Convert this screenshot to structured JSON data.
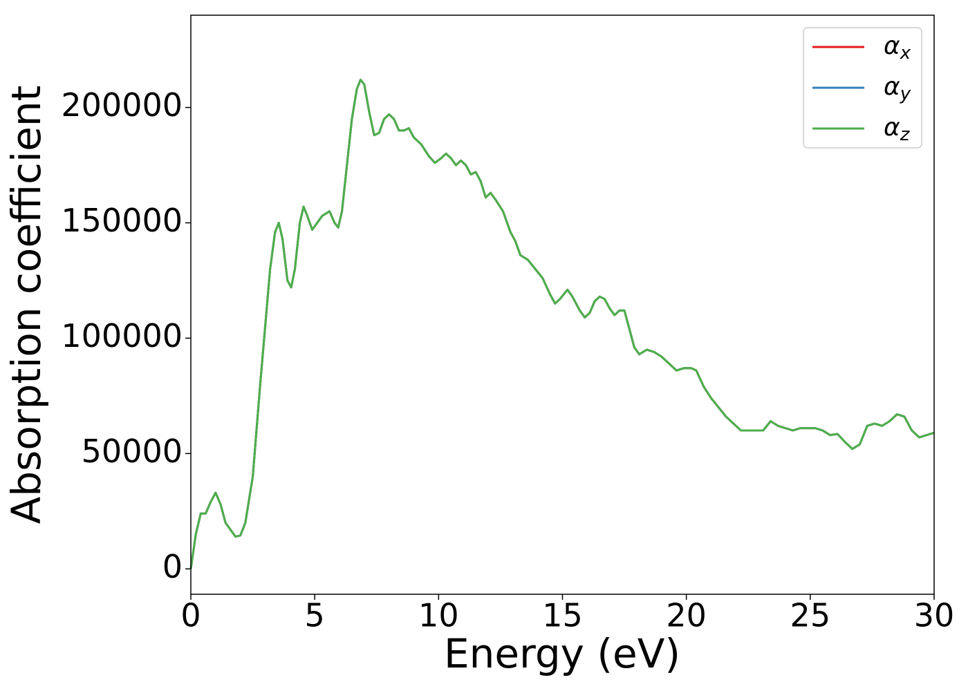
{
  "chart_data": {
    "type": "line",
    "x_label": "Energy (eV)",
    "y_label": "Absorption coefficient",
    "x": [
      0,
      0.2,
      0.4,
      0.6,
      0.8,
      1.0,
      1.2,
      1.4,
      1.6,
      1.8,
      2.0,
      2.2,
      2.5,
      2.8,
      3.0,
      3.2,
      3.4,
      3.55,
      3.7,
      3.9,
      4.05,
      4.2,
      4.4,
      4.55,
      4.7,
      4.9,
      5.1,
      5.3,
      5.6,
      5.8,
      5.95,
      6.1,
      6.3,
      6.5,
      6.7,
      6.85,
      7.0,
      7.2,
      7.4,
      7.6,
      7.8,
      8.0,
      8.2,
      8.4,
      8.6,
      8.8,
      9.0,
      9.3,
      9.6,
      9.85,
      10.1,
      10.3,
      10.5,
      10.7,
      10.9,
      11.1,
      11.3,
      11.5,
      11.7,
      11.9,
      12.1,
      12.3,
      12.6,
      12.9,
      13.1,
      13.3,
      13.6,
      13.9,
      14.2,
      14.5,
      14.7,
      14.9,
      15.2,
      15.4,
      15.7,
      15.9,
      16.1,
      16.3,
      16.5,
      16.7,
      16.9,
      17.1,
      17.3,
      17.5,
      17.7,
      17.9,
      18.1,
      18.4,
      18.7,
      19.0,
      19.3,
      19.6,
      19.9,
      20.2,
      20.4,
      20.7,
      21.0,
      21.3,
      21.6,
      21.9,
      22.2,
      22.5,
      22.8,
      23.1,
      23.4,
      23.7,
      24.0,
      24.3,
      24.6,
      24.9,
      25.2,
      25.5,
      25.8,
      26.1,
      26.4,
      26.7,
      27.0,
      27.3,
      27.6,
      27.9,
      28.2,
      28.5,
      28.8,
      29.1,
      29.4,
      29.7,
      30.0
    ],
    "series": [
      {
        "name": "α_x",
        "color": "#e41a1c",
        "values": [
          0,
          15000,
          24000,
          24000,
          29000,
          33000,
          28000,
          20000,
          17000,
          14000,
          14500,
          20000,
          40000,
          80000,
          105000,
          130000,
          146000,
          150000,
          143000,
          125000,
          122000,
          130000,
          150000,
          157000,
          153000,
          147000,
          150000,
          153000,
          155000,
          150000,
          148000,
          155000,
          175000,
          195000,
          208000,
          212000,
          210000,
          198000,
          188000,
          189000,
          195000,
          197000,
          195000,
          190000,
          190000,
          191000,
          187000,
          184000,
          179000,
          176000,
          178000,
          180000,
          178000,
          175000,
          177000,
          175000,
          171000,
          172000,
          168000,
          161000,
          163000,
          160000,
          155000,
          146000,
          142000,
          136000,
          134000,
          130000,
          126000,
          119000,
          115000,
          117000,
          121000,
          118000,
          112000,
          109000,
          111000,
          116000,
          118000,
          117000,
          113000,
          110000,
          112000,
          112000,
          104000,
          96000,
          93000,
          95000,
          94000,
          92000,
          89000,
          86000,
          87000,
          87000,
          86000,
          79000,
          74000,
          70000,
          66000,
          63000,
          60000,
          60000,
          60000,
          60000,
          64000,
          62000,
          61000,
          60000,
          61000,
          61000,
          61000,
          60000,
          58000,
          58500,
          55000,
          52000,
          54000,
          62000,
          63000,
          62000,
          64000,
          67000,
          66000,
          60000,
          57000,
          58000,
          59000
        ]
      },
      {
        "name": "α_y",
        "color": "#377eb8",
        "values": [
          0,
          15000,
          24000,
          24000,
          29000,
          33000,
          28000,
          20000,
          17000,
          14000,
          14500,
          20000,
          40000,
          80000,
          105000,
          130000,
          146000,
          150000,
          143000,
          125000,
          122000,
          130000,
          150000,
          157000,
          153000,
          147000,
          150000,
          153000,
          155000,
          150000,
          148000,
          155000,
          175000,
          195000,
          208000,
          212000,
          210000,
          198000,
          188000,
          189000,
          195000,
          197000,
          195000,
          190000,
          190000,
          191000,
          187000,
          184000,
          179000,
          176000,
          178000,
          180000,
          178000,
          175000,
          177000,
          175000,
          171000,
          172000,
          168000,
          161000,
          163000,
          160000,
          155000,
          146000,
          142000,
          136000,
          134000,
          130000,
          126000,
          119000,
          115000,
          117000,
          121000,
          118000,
          112000,
          109000,
          111000,
          116000,
          118000,
          117000,
          113000,
          110000,
          112000,
          112000,
          104000,
          96000,
          93000,
          95000,
          94000,
          92000,
          89000,
          86000,
          87000,
          87000,
          86000,
          79000,
          74000,
          70000,
          66000,
          63000,
          60000,
          60000,
          60000,
          60000,
          64000,
          62000,
          61000,
          60000,
          61000,
          61000,
          61000,
          60000,
          58000,
          58500,
          55000,
          52000,
          54000,
          62000,
          63000,
          62000,
          64000,
          67000,
          66000,
          60000,
          57000,
          58000,
          59000
        ]
      },
      {
        "name": "α_z",
        "color": "#4daf4a",
        "values": [
          0,
          15000,
          24000,
          24000,
          29000,
          33000,
          28000,
          20000,
          17000,
          14000,
          14500,
          20000,
          40000,
          80000,
          105000,
          130000,
          146000,
          150000,
          143000,
          125000,
          122000,
          130000,
          150000,
          157000,
          153000,
          147000,
          150000,
          153000,
          155000,
          150000,
          148000,
          155000,
          175000,
          195000,
          208000,
          212000,
          210000,
          198000,
          188000,
          189000,
          195000,
          197000,
          195000,
          190000,
          190000,
          191000,
          187000,
          184000,
          179000,
          176000,
          178000,
          180000,
          178000,
          175000,
          177000,
          175000,
          171000,
          172000,
          168000,
          161000,
          163000,
          160000,
          155000,
          146000,
          142000,
          136000,
          134000,
          130000,
          126000,
          119000,
          115000,
          117000,
          121000,
          118000,
          112000,
          109000,
          111000,
          116000,
          118000,
          117000,
          113000,
          110000,
          112000,
          112000,
          104000,
          96000,
          93000,
          95000,
          94000,
          92000,
          89000,
          86000,
          87000,
          87000,
          86000,
          79000,
          74000,
          70000,
          66000,
          63000,
          60000,
          60000,
          60000,
          60000,
          64000,
          62000,
          61000,
          60000,
          61000,
          61000,
          61000,
          60000,
          58000,
          58500,
          55000,
          52000,
          54000,
          62000,
          63000,
          62000,
          64000,
          67000,
          66000,
          60000,
          57000,
          58000,
          59000
        ]
      }
    ],
    "xlim": [
      0,
      30
    ],
    "xticks": [
      0,
      5,
      10,
      15,
      20,
      25,
      30
    ],
    "ylim": [
      -11000,
      240000
    ],
    "yticks": [
      0,
      50000,
      100000,
      150000,
      200000
    ],
    "legend": "upper right"
  }
}
